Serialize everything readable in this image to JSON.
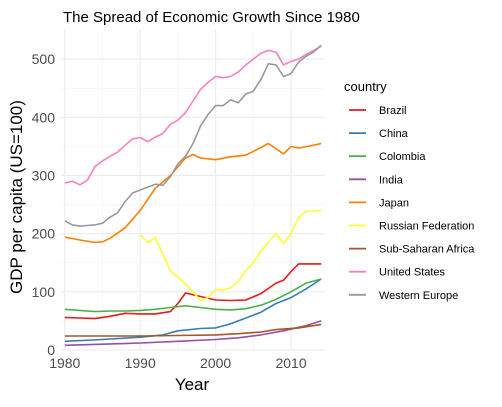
{
  "chart_data": {
    "type": "line",
    "title": "The Spread of Economic Growth Since 1980",
    "xlabel": "Year",
    "ylabel": "GDP per capita (US=100)",
    "xlim": [
      1979.5,
      2014.5
    ],
    "ylim": [
      0,
      550
    ],
    "x_ticks": [
      1980,
      1990,
      2000,
      2010
    ],
    "y_ticks": [
      0,
      100,
      200,
      300,
      400,
      500
    ],
    "legend_title": "country",
    "legend_position": "right",
    "grid": true,
    "series": [
      {
        "name": "Brazil",
        "color": "#e41a1c",
        "points": [
          [
            1980,
            56
          ],
          [
            1982,
            55
          ],
          [
            1984,
            54
          ],
          [
            1986,
            58
          ],
          [
            1988,
            63
          ],
          [
            1990,
            62
          ],
          [
            1992,
            62
          ],
          [
            1994,
            66
          ],
          [
            1995,
            80
          ],
          [
            1996,
            98
          ],
          [
            1998,
            92
          ],
          [
            2000,
            86
          ],
          [
            2002,
            85
          ],
          [
            2004,
            86
          ],
          [
            2006,
            97
          ],
          [
            2008,
            115
          ],
          [
            2009,
            120
          ],
          [
            2010,
            135
          ],
          [
            2011,
            148
          ],
          [
            2014,
            148
          ]
        ]
      },
      {
        "name": "China",
        "color": "#377eb8",
        "points": [
          [
            1980,
            15
          ],
          [
            1985,
            18
          ],
          [
            1990,
            22
          ],
          [
            1993,
            26
          ],
          [
            1995,
            33
          ],
          [
            1998,
            37
          ],
          [
            2000,
            38
          ],
          [
            2002,
            45
          ],
          [
            2004,
            55
          ],
          [
            2006,
            65
          ],
          [
            2008,
            80
          ],
          [
            2010,
            90
          ],
          [
            2012,
            105
          ],
          [
            2014,
            122
          ]
        ]
      },
      {
        "name": "Colombia",
        "color": "#4daf4a",
        "points": [
          [
            1980,
            70
          ],
          [
            1982,
            68
          ],
          [
            1984,
            66
          ],
          [
            1986,
            67
          ],
          [
            1988,
            67
          ],
          [
            1990,
            68
          ],
          [
            1992,
            70
          ],
          [
            1994,
            73
          ],
          [
            1996,
            76
          ],
          [
            1998,
            73
          ],
          [
            2000,
            70
          ],
          [
            2002,
            69
          ],
          [
            2004,
            71
          ],
          [
            2006,
            77
          ],
          [
            2008,
            87
          ],
          [
            2010,
            100
          ],
          [
            2012,
            115
          ],
          [
            2014,
            122
          ]
        ]
      },
      {
        "name": "India",
        "color": "#984ea3",
        "points": [
          [
            1980,
            8
          ],
          [
            1985,
            10
          ],
          [
            1990,
            12
          ],
          [
            1995,
            15
          ],
          [
            2000,
            18
          ],
          [
            2003,
            21
          ],
          [
            2006,
            26
          ],
          [
            2009,
            33
          ],
          [
            2012,
            42
          ],
          [
            2014,
            50
          ]
        ]
      },
      {
        "name": "Japan",
        "color": "#ff7f00",
        "points": [
          [
            1980,
            194
          ],
          [
            1982,
            189
          ],
          [
            1984,
            185
          ],
          [
            1985,
            186
          ],
          [
            1986,
            192
          ],
          [
            1988,
            210
          ],
          [
            1990,
            240
          ],
          [
            1992,
            278
          ],
          [
            1994,
            300
          ],
          [
            1996,
            330
          ],
          [
            1997,
            336
          ],
          [
            1998,
            330
          ],
          [
            2000,
            327
          ],
          [
            2002,
            332
          ],
          [
            2004,
            335
          ],
          [
            2006,
            348
          ],
          [
            2007,
            355
          ],
          [
            2009,
            337
          ],
          [
            2010,
            350
          ],
          [
            2011,
            347
          ],
          [
            2013,
            352
          ],
          [
            2014,
            355
          ]
        ]
      },
      {
        "name": "Russian Federation",
        "color": "#ffff33",
        "points": [
          [
            1990,
            198
          ],
          [
            1991,
            185
          ],
          [
            1992,
            193
          ],
          [
            1993,
            165
          ],
          [
            1994,
            136
          ],
          [
            1995,
            126
          ],
          [
            1996,
            113
          ],
          [
            1997,
            100
          ],
          [
            1998,
            85
          ],
          [
            1999,
            90
          ],
          [
            2000,
            104
          ],
          [
            2001,
            103
          ],
          [
            2002,
            107
          ],
          [
            2003,
            118
          ],
          [
            2004,
            136
          ],
          [
            2005,
            150
          ],
          [
            2006,
            170
          ],
          [
            2007,
            185
          ],
          [
            2008,
            200
          ],
          [
            2009,
            183
          ],
          [
            2010,
            200
          ],
          [
            2011,
            228
          ],
          [
            2012,
            238
          ],
          [
            2014,
            240
          ]
        ]
      },
      {
        "name": "Sub-Saharan Africa",
        "color": "#a65628",
        "points": [
          [
            1980,
            24
          ],
          [
            1985,
            24
          ],
          [
            1990,
            24
          ],
          [
            1995,
            25
          ],
          [
            2000,
            26
          ],
          [
            2003,
            28
          ],
          [
            2006,
            31
          ],
          [
            2008,
            35
          ],
          [
            2011,
            38
          ],
          [
            2014,
            44
          ]
        ]
      },
      {
        "name": "United States",
        "color": "#f781bf",
        "points": [
          [
            1980,
            287
          ],
          [
            1981,
            290
          ],
          [
            1982,
            284
          ],
          [
            1983,
            292
          ],
          [
            1984,
            315
          ],
          [
            1985,
            325
          ],
          [
            1986,
            333
          ],
          [
            1987,
            340
          ],
          [
            1988,
            352
          ],
          [
            1989,
            363
          ],
          [
            1990,
            365
          ],
          [
            1991,
            358
          ],
          [
            1992,
            366
          ],
          [
            1993,
            372
          ],
          [
            1994,
            388
          ],
          [
            1995,
            395
          ],
          [
            1996,
            408
          ],
          [
            1997,
            428
          ],
          [
            1998,
            448
          ],
          [
            1999,
            460
          ],
          [
            2000,
            470
          ],
          [
            2001,
            468
          ],
          [
            2002,
            470
          ],
          [
            2003,
            478
          ],
          [
            2004,
            490
          ],
          [
            2005,
            500
          ],
          [
            2006,
            510
          ],
          [
            2007,
            515
          ],
          [
            2008,
            512
          ],
          [
            2009,
            490
          ],
          [
            2010,
            496
          ],
          [
            2011,
            500
          ],
          [
            2012,
            508
          ],
          [
            2013,
            515
          ],
          [
            2014,
            522
          ]
        ]
      },
      {
        "name": "Western Europe",
        "color": "#999999",
        "points": [
          [
            1980,
            222
          ],
          [
            1981,
            215
          ],
          [
            1982,
            213
          ],
          [
            1983,
            214
          ],
          [
            1984,
            215
          ],
          [
            1985,
            218
          ],
          [
            1986,
            228
          ],
          [
            1987,
            236
          ],
          [
            1988,
            255
          ],
          [
            1989,
            270
          ],
          [
            1990,
            275
          ],
          [
            1991,
            280
          ],
          [
            1992,
            285
          ],
          [
            1993,
            283
          ],
          [
            1994,
            298
          ],
          [
            1995,
            320
          ],
          [
            1996,
            333
          ],
          [
            1997,
            355
          ],
          [
            1998,
            385
          ],
          [
            1999,
            405
          ],
          [
            2000,
            420
          ],
          [
            2001,
            420
          ],
          [
            2002,
            430
          ],
          [
            2003,
            425
          ],
          [
            2004,
            440
          ],
          [
            2005,
            445
          ],
          [
            2006,
            465
          ],
          [
            2007,
            492
          ],
          [
            2008,
            490
          ],
          [
            2009,
            470
          ],
          [
            2010,
            475
          ],
          [
            2011,
            495
          ],
          [
            2012,
            505
          ],
          [
            2013,
            512
          ],
          [
            2014,
            524
          ]
        ]
      }
    ]
  }
}
